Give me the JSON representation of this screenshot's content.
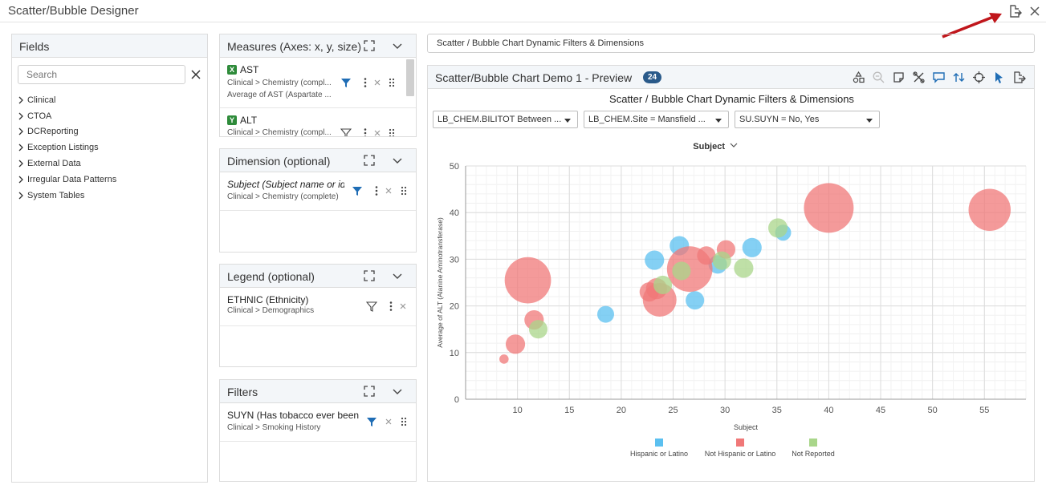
{
  "window": {
    "title": "Scatter/Bubble Designer"
  },
  "fields": {
    "title": "Fields",
    "search_placeholder": "Search",
    "tree": [
      "Clinical",
      "CTOA",
      "DCReporting",
      "Exception Listings",
      "External Data",
      "Irregular Data Patterns",
      "System Tables"
    ]
  },
  "measures": {
    "title": "Measures (Axes: x, y, size)",
    "items": [
      {
        "axis": "X",
        "name": "AST",
        "path": "Clinical > Chemistry (compl...",
        "agg": "Average of AST (Aspartate ..."
      },
      {
        "axis": "Y",
        "name": "ALT",
        "path": "Clinical > Chemistry (compl..."
      }
    ]
  },
  "dimension": {
    "title": "Dimension (optional)",
    "item": {
      "name": "Subject (Subject name or ident",
      "path": "Clinical > Chemistry (complete)"
    }
  },
  "legend": {
    "title": "Legend (optional)",
    "item": {
      "name": "ETHNIC (Ethnicity)",
      "path": "Clinical > Demographics"
    }
  },
  "filters": {
    "title": "Filters",
    "item": {
      "name": "SUYN (Has tobacco ever been use",
      "path": "Clinical > Smoking History"
    }
  },
  "path_bar": {
    "text": "Scatter / Bubble Chart Dynamic Filters & Dimensions"
  },
  "preview": {
    "title": "Scatter/Bubble Chart Demo 1 - Preview",
    "count": "24",
    "filters": [
      "LB_CHEM.BILITOT Between ...",
      "LB_CHEM.Site = Mansfield ...",
      "SU.SUYN = No, Yes"
    ],
    "dimension_selector": "Subject"
  },
  "colors": {
    "hispanic": "#5bc0f0",
    "not_hispanic": "#f07878",
    "not_reported": "#a9d68a",
    "accent": "#2a5a8a",
    "arrow": "#c0161b"
  },
  "chart_data": {
    "type": "scatter",
    "title": "Scatter / Bubble Chart Dynamic Filters & Dimensions",
    "xlabel": "Subject",
    "ylabel": "Average of ALT (Alanine Aminotransferase)",
    "xlim": [
      5,
      59
    ],
    "ylim": [
      0,
      50
    ],
    "xticks": [
      10,
      15,
      20,
      25,
      30,
      35,
      40,
      45,
      50,
      55
    ],
    "yticks": [
      0,
      10,
      20,
      30,
      40,
      50
    ],
    "grid": true,
    "legend_position": "bottom",
    "series": [
      {
        "name": "Hispanic or Latino",
        "color": "#5bc0f0",
        "points": [
          {
            "x": 18.5,
            "y": 18.2,
            "size": 1.0
          },
          {
            "x": 23.2,
            "y": 29.8,
            "size": 1.15
          },
          {
            "x": 25.6,
            "y": 32.9,
            "size": 1.15
          },
          {
            "x": 27.1,
            "y": 21.2,
            "size": 1.1
          },
          {
            "x": 29.3,
            "y": 28.9,
            "size": 1.1
          },
          {
            "x": 32.6,
            "y": 32.5,
            "size": 1.15
          },
          {
            "x": 35.6,
            "y": 35.7,
            "size": 0.95
          }
        ]
      },
      {
        "name": "Not Hispanic or Latino",
        "color": "#f07878",
        "points": [
          {
            "x": 8.7,
            "y": 8.6,
            "size": 0.55
          },
          {
            "x": 9.8,
            "y": 11.8,
            "size": 1.15
          },
          {
            "x": 11.0,
            "y": 25.5,
            "size": 2.75
          },
          {
            "x": 11.6,
            "y": 17.0,
            "size": 1.15
          },
          {
            "x": 22.7,
            "y": 23.0,
            "size": 1.15
          },
          {
            "x": 23.4,
            "y": 23.7,
            "size": 1.25
          },
          {
            "x": 23.7,
            "y": 21.3,
            "size": 2.0
          },
          {
            "x": 26.6,
            "y": 27.9,
            "size": 2.7
          },
          {
            "x": 28.2,
            "y": 30.8,
            "size": 1.1
          },
          {
            "x": 30.1,
            "y": 32.1,
            "size": 1.1
          },
          {
            "x": 40.0,
            "y": 41.0,
            "size": 2.95
          },
          {
            "x": 55.5,
            "y": 40.6,
            "size": 2.5
          }
        ]
      },
      {
        "name": "Not Reported",
        "color": "#a9d68a",
        "points": [
          {
            "x": 12.0,
            "y": 15.0,
            "size": 1.1
          },
          {
            "x": 24.0,
            "y": 24.5,
            "size": 1.1
          },
          {
            "x": 25.8,
            "y": 27.5,
            "size": 1.1
          },
          {
            "x": 29.7,
            "y": 29.7,
            "size": 1.1
          },
          {
            "x": 31.8,
            "y": 28.1,
            "size": 1.15
          },
          {
            "x": 35.1,
            "y": 36.7,
            "size": 1.15
          }
        ]
      }
    ]
  }
}
